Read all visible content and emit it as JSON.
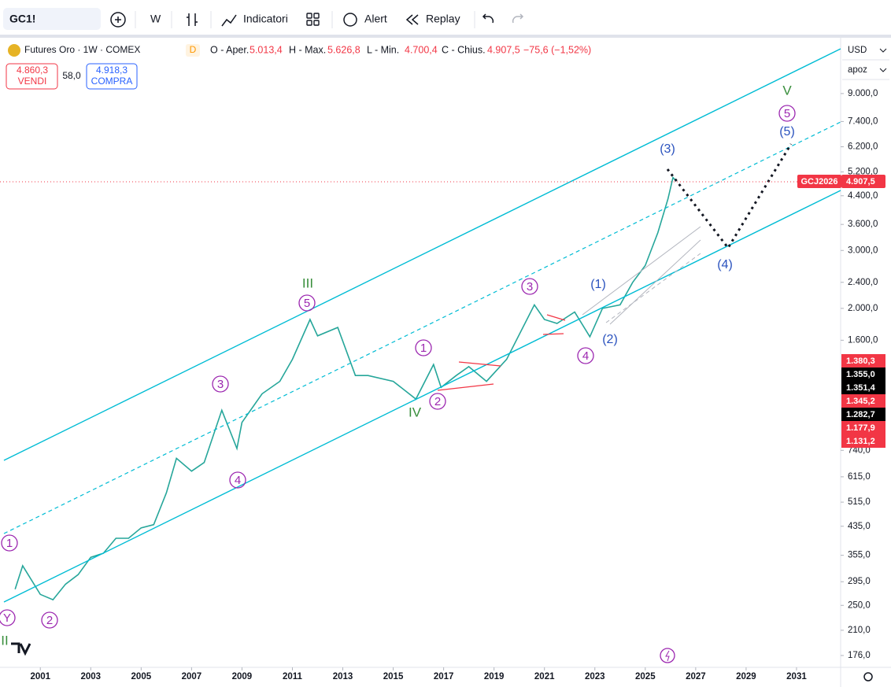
{
  "ui": {
    "symbol": "GC1!",
    "interval": "W",
    "indicators": "Indicatori",
    "alert": "Alert",
    "replay": "Replay",
    "instrument": "Futures Oro · 1W · COMEX",
    "session": "D",
    "open_label": "O - Aper.",
    "open": "5.013,4",
    "high_label": "H - Max.",
    "high": "5.626,8",
    "low_label": "L - Min.",
    "low": "4.700,4",
    "close_label": "C - Chius.",
    "close": "4.907,5",
    "change": "−75,6 (−1,52%)",
    "sell_price": "4.860,3",
    "sell": "VENDI",
    "spread": "58,0",
    "buy_price": "4.918,3",
    "buy": "COMPRA",
    "currency": "USD",
    "scale_mode": "apoz",
    "contract_badge": "GCJ2026",
    "last_badge": "4.907,5",
    "price_badges": [
      "1.380,3",
      "1.355,0",
      "1.351,4",
      "1.345,2",
      "1.282,7",
      "1.177,9",
      "1.131,2"
    ]
  },
  "annotations": [
    "1",
    "Y",
    "2",
    "3",
    "4",
    "5",
    "1",
    "2",
    "3",
    "4",
    "5",
    "II",
    "III",
    "IV",
    "V",
    "(1)",
    "(2)",
    "(3)",
    "(4)",
    "(5)"
  ],
  "chart_data": {
    "type": "line",
    "log_scale": true,
    "x": [
      2000.0,
      2000.3,
      2001.0,
      2001.5,
      2002.0,
      2002.5,
      2003.0,
      2003.5,
      2004.0,
      2004.5,
      2005.0,
      2005.5,
      2006.0,
      2006.4,
      2007.0,
      2007.5,
      2008.2,
      2008.8,
      2009.0,
      2009.8,
      2010.5,
      2011.0,
      2011.7,
      2012.0,
      2012.8,
      2013.5,
      2014.0,
      2015.0,
      2015.9,
      2016.6,
      2016.9,
      2017.5,
      2018.0,
      2018.7,
      2019.5,
      2020.6,
      2021.0,
      2021.5,
      2022.2,
      2022.8,
      2023.3,
      2024.0,
      2024.5,
      2025.0,
      2025.5,
      2025.9,
      2026.1,
      2026.2
    ],
    "series": [
      {
        "color": "#26a69a",
        "values": [
          280,
          330,
          270,
          260,
          290,
          310,
          350,
          360,
          400,
          400,
          430,
          440,
          550,
          700,
          640,
          680,
          980,
          750,
          900,
          1100,
          1200,
          1400,
          1850,
          1650,
          1750,
          1250,
          1250,
          1200,
          1060,
          1350,
          1150,
          1250,
          1330,
          1200,
          1400,
          2050,
          1850,
          1800,
          1950,
          1640,
          2000,
          2050,
          2400,
          2700,
          3400,
          4300,
          5000,
          4907.5
        ]
      }
    ],
    "xlim": [
      1999.4,
      2032.75
    ],
    "xticks": [
      2001,
      2003,
      2005,
      2007,
      2009,
      2011,
      2013,
      2015,
      2017,
      2019,
      2021,
      2023,
      2025,
      2027,
      2029,
      2031
    ],
    "ylim": [
      162,
      13300
    ],
    "yticks": [
      {
        "value": 9000,
        "label": "9.000,0"
      },
      {
        "value": 7400,
        "label": "7.400,0"
      },
      {
        "value": 6200,
        "label": "6.200,0"
      },
      {
        "value": 5200,
        "label": "5.200,0"
      },
      {
        "value": 4400,
        "label": "4.400,0"
      },
      {
        "value": 3600,
        "label": "3.600,0"
      },
      {
        "value": 3000,
        "label": "3.000,0"
      },
      {
        "value": 2400,
        "label": "2.400,0"
      },
      {
        "value": 2000,
        "label": "2.000,0"
      },
      {
        "value": 1600,
        "label": "1.600,0"
      },
      {
        "value": 740,
        "label": "740,0"
      },
      {
        "value": 615,
        "label": "615,0"
      },
      {
        "value": 515,
        "label": "515,0"
      },
      {
        "value": 435,
        "label": "435,0"
      },
      {
        "value": 355,
        "label": "355,0"
      },
      {
        "value": 295,
        "label": "295,0"
      },
      {
        "value": 250,
        "label": "250,0"
      },
      {
        "value": 210,
        "label": "210,0"
      },
      {
        "value": 176,
        "label": "176,0"
      }
    ]
  }
}
